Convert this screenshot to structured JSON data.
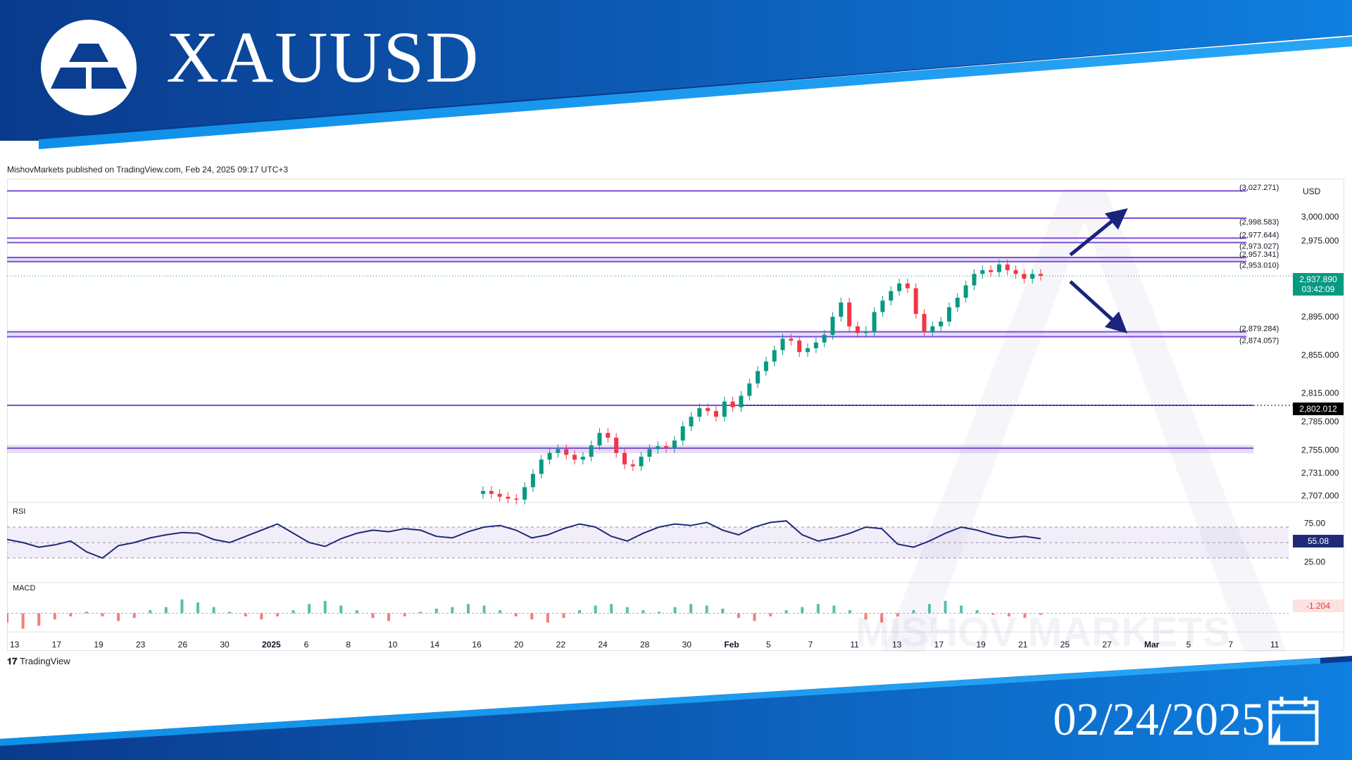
{
  "header": {
    "symbol": "XAUUSD",
    "date": "02/24/2025",
    "logo_icon": "gold-bars-icon",
    "calendar_icon": "calendar-icon"
  },
  "published_line": "MishovMarkets published on TradingView.com, Feb 24, 2025 09:17 UTC+3",
  "currency": "USD",
  "footer_brand": "TradingView",
  "watermark": "MISHOV MARKETS",
  "colors": {
    "banner_dark": "#0a3a8c",
    "banner_light": "#0f7fe0",
    "level_line": "#7b4fd6",
    "candle_up": "#089981",
    "candle_down": "#f23645",
    "rsi_line": "#1e2a78",
    "arrow": "#1a237e"
  },
  "price_tags": {
    "current_price": "2,937.890",
    "countdown": "03:42:09",
    "support_price": "2,802.012",
    "rsi_value": "55.08",
    "macd_value": "-1.204"
  },
  "chart_data": {
    "type": "candlestick",
    "price_axis": {
      "ylim": [
        2700,
        3040
      ],
      "ticks": [
        "3,000.000",
        "2,975.000",
        "2,895.000",
        "2,855.000",
        "2,815.000",
        "2,785.000",
        "2,755.000",
        "2,731.000",
        "2,707.000"
      ],
      "tick_values": [
        3000,
        2975,
        2895,
        2855,
        2815,
        2785,
        2755,
        2731,
        2707
      ]
    },
    "x_axis": {
      "tick_labels": [
        "13",
        "17",
        "19",
        "23",
        "26",
        "30",
        "2025",
        "6",
        "8",
        "10",
        "14",
        "16",
        "20",
        "22",
        "24",
        "28",
        "30",
        "Feb",
        "5",
        "7",
        "11",
        "13",
        "17",
        "19",
        "21",
        "25",
        "27",
        "Mar",
        "5",
        "7",
        "11"
      ]
    },
    "levels": [
      {
        "value": 3027.271,
        "label": "(3,027.271)"
      },
      {
        "value": 2998.583,
        "label": "(2,998.583)"
      },
      {
        "value": 2977.644,
        "label": "(2,977.644)"
      },
      {
        "value": 2973.027,
        "label": "(2,973.027)"
      },
      {
        "value": 2957.341,
        "label": "(2,957.341)"
      },
      {
        "value": 2953.01,
        "label": "(2,953.010)"
      },
      {
        "value": 2879.284,
        "label": "(2,879.284)"
      },
      {
        "value": 2874.057,
        "label": "(2,874.057)"
      },
      {
        "value": 2802.012,
        "label": ""
      },
      {
        "value": 2757.0,
        "label": ""
      }
    ],
    "close_series": [
      2712,
      2709,
      2706,
      2704,
      2703,
      2716,
      2730,
      2745,
      2752,
      2756,
      2750,
      2745,
      2748,
      2760,
      2773,
      2768,
      2752,
      2740,
      2738,
      2748,
      2756,
      2759,
      2757,
      2765,
      2780,
      2790,
      2799,
      2796,
      2790,
      2806,
      2800,
      2812,
      2825,
      2838,
      2848,
      2860,
      2872,
      2870,
      2858,
      2862,
      2868,
      2876,
      2895,
      2910,
      2885,
      2878,
      2880,
      2900,
      2912,
      2922,
      2930,
      2925,
      2898,
      2880,
      2885,
      2890,
      2905,
      2915,
      2928,
      2940,
      2944,
      2942,
      2950,
      2944,
      2940,
      2935,
      2940,
      2938
    ],
    "rsi": {
      "label": "RSI",
      "ylim": [
        0,
        100
      ],
      "ticks": [
        "75.00",
        "25.00"
      ],
      "tick_values": [
        75,
        25
      ],
      "band": [
        70,
        30
      ],
      "current": 55.08,
      "values": [
        54,
        50,
        44,
        47,
        52,
        38,
        30,
        46,
        50,
        56,
        60,
        63,
        62,
        54,
        50,
        58,
        66,
        74,
        62,
        50,
        45,
        55,
        62,
        66,
        64,
        68,
        66,
        58,
        56,
        64,
        70,
        72,
        66,
        56,
        60,
        68,
        74,
        70,
        58,
        52,
        62,
        70,
        74,
        72,
        76,
        66,
        60,
        70,
        76,
        78,
        60,
        52,
        56,
        62,
        70,
        68,
        48,
        44,
        52,
        62,
        70,
        66,
        60,
        56,
        58,
        55
      ]
    },
    "macd": {
      "label": "MACD",
      "current": -1.204,
      "hist": [
        -6,
        -10,
        -8,
        -4,
        -2,
        1,
        -2,
        -5,
        -3,
        2,
        4,
        9,
        7,
        4,
        1,
        -2,
        -4,
        -2,
        2,
        6,
        8,
        5,
        2,
        -3,
        -5,
        -2,
        1,
        3,
        4,
        6,
        5,
        2,
        -2,
        -4,
        -6,
        -3,
        2,
        5,
        6,
        4,
        2,
        1,
        4,
        6,
        5,
        3,
        -3,
        -5,
        -2,
        2,
        4,
        6,
        5,
        2,
        -4,
        -6,
        -2,
        2,
        6,
        8,
        5,
        2,
        -1,
        -2,
        -3,
        -1
      ]
    }
  }
}
